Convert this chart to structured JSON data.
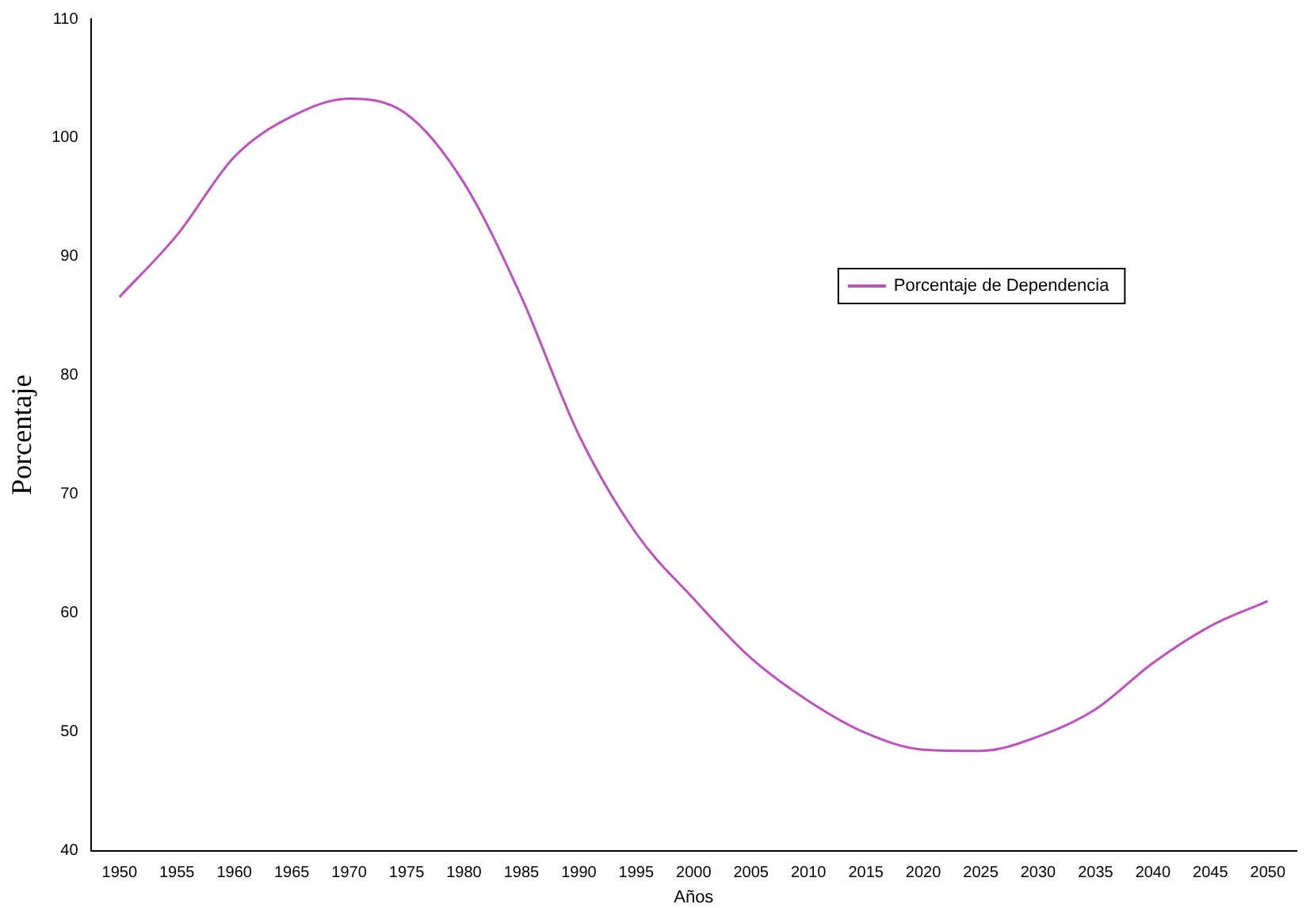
{
  "chart_data": {
    "type": "line",
    "xlabel": "Años",
    "ylabel": "Porcentaje",
    "categories": [
      "1950",
      "1955",
      "1960",
      "1965",
      "1970",
      "1975",
      "1980",
      "1985",
      "1990",
      "1995",
      "2000",
      "2005",
      "2010",
      "2015",
      "2020",
      "2025",
      "2030",
      "2035",
      "2040",
      "2045",
      "2050"
    ],
    "series": [
      {
        "name": "Porcentaje de Dependencia",
        "color": "#c050c0",
        "values": [
          86.6,
          91.8,
          98.4,
          101.8,
          103.3,
          102,
          96.2,
          86.6,
          75,
          66.7,
          61.2,
          56.2,
          52.6,
          49.9,
          48.5,
          48.4,
          49.6,
          51.9,
          55.8,
          58.9,
          61
        ]
      }
    ],
    "ylim": [
      40,
      110
    ],
    "yticks": [
      40,
      50,
      60,
      70,
      80,
      90,
      100,
      110
    ],
    "grid": false,
    "legend": "right",
    "marker": "none",
    "line_style": "solid"
  }
}
